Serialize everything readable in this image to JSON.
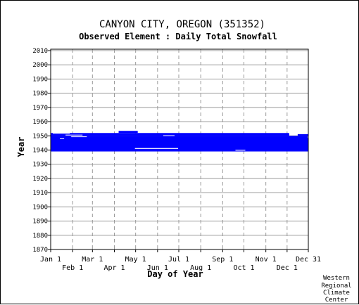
{
  "chart_data": {
    "type": "heatmap",
    "title": "CANYON CITY, OREGON   (351352)",
    "subtitle": "Observed Element : Daily Total Snowfall",
    "xlabel": "Day of Year",
    "ylabel": "Year",
    "credit": [
      "Western",
      "Regional",
      "Climate",
      "Center"
    ],
    "ylim": [
      1870,
      2011
    ],
    "xlim_days": [
      1,
      365
    ],
    "y_ticks": [
      2010,
      2000,
      1990,
      1980,
      1970,
      1960,
      1950,
      1940,
      1930,
      1920,
      1910,
      1900,
      1890,
      1880,
      1870
    ],
    "x_ticks_top": [
      {
        "label": "Jan 1",
        "day": 1
      },
      {
        "label": "Mar 1",
        "day": 60
      },
      {
        "label": "May 1",
        "day": 121
      },
      {
        "label": "Jul 1",
        "day": 182
      },
      {
        "label": "Sep 1",
        "day": 244
      },
      {
        "label": "Nov 1",
        "day": 305
      },
      {
        "label": "Dec 31",
        "day": 365
      }
    ],
    "x_ticks_bottom": [
      {
        "label": "Feb 1",
        "day": 32
      },
      {
        "label": "Apr 1",
        "day": 91
      },
      {
        "label": "Jun 1",
        "day": 152
      },
      {
        "label": "Aug 1",
        "day": 213
      },
      {
        "label": "Oct 1",
        "day": 274
      },
      {
        "label": "Dec 1",
        "day": 335
      }
    ],
    "grid": true,
    "color": "#0000ff",
    "series": [
      {
        "years": [
          1939.0,
          1950.0
        ],
        "days": [
          1,
          365
        ]
      },
      {
        "years": [
          1950.0,
          1952.0
        ],
        "days": [
          1,
          338
        ]
      },
      {
        "years": [
          1950.0,
          1951.2
        ],
        "days": [
          350,
          365
        ]
      },
      {
        "years": [
          1952.0,
          1953.5
        ],
        "days": [
          97,
          124
        ]
      }
    ]
  }
}
